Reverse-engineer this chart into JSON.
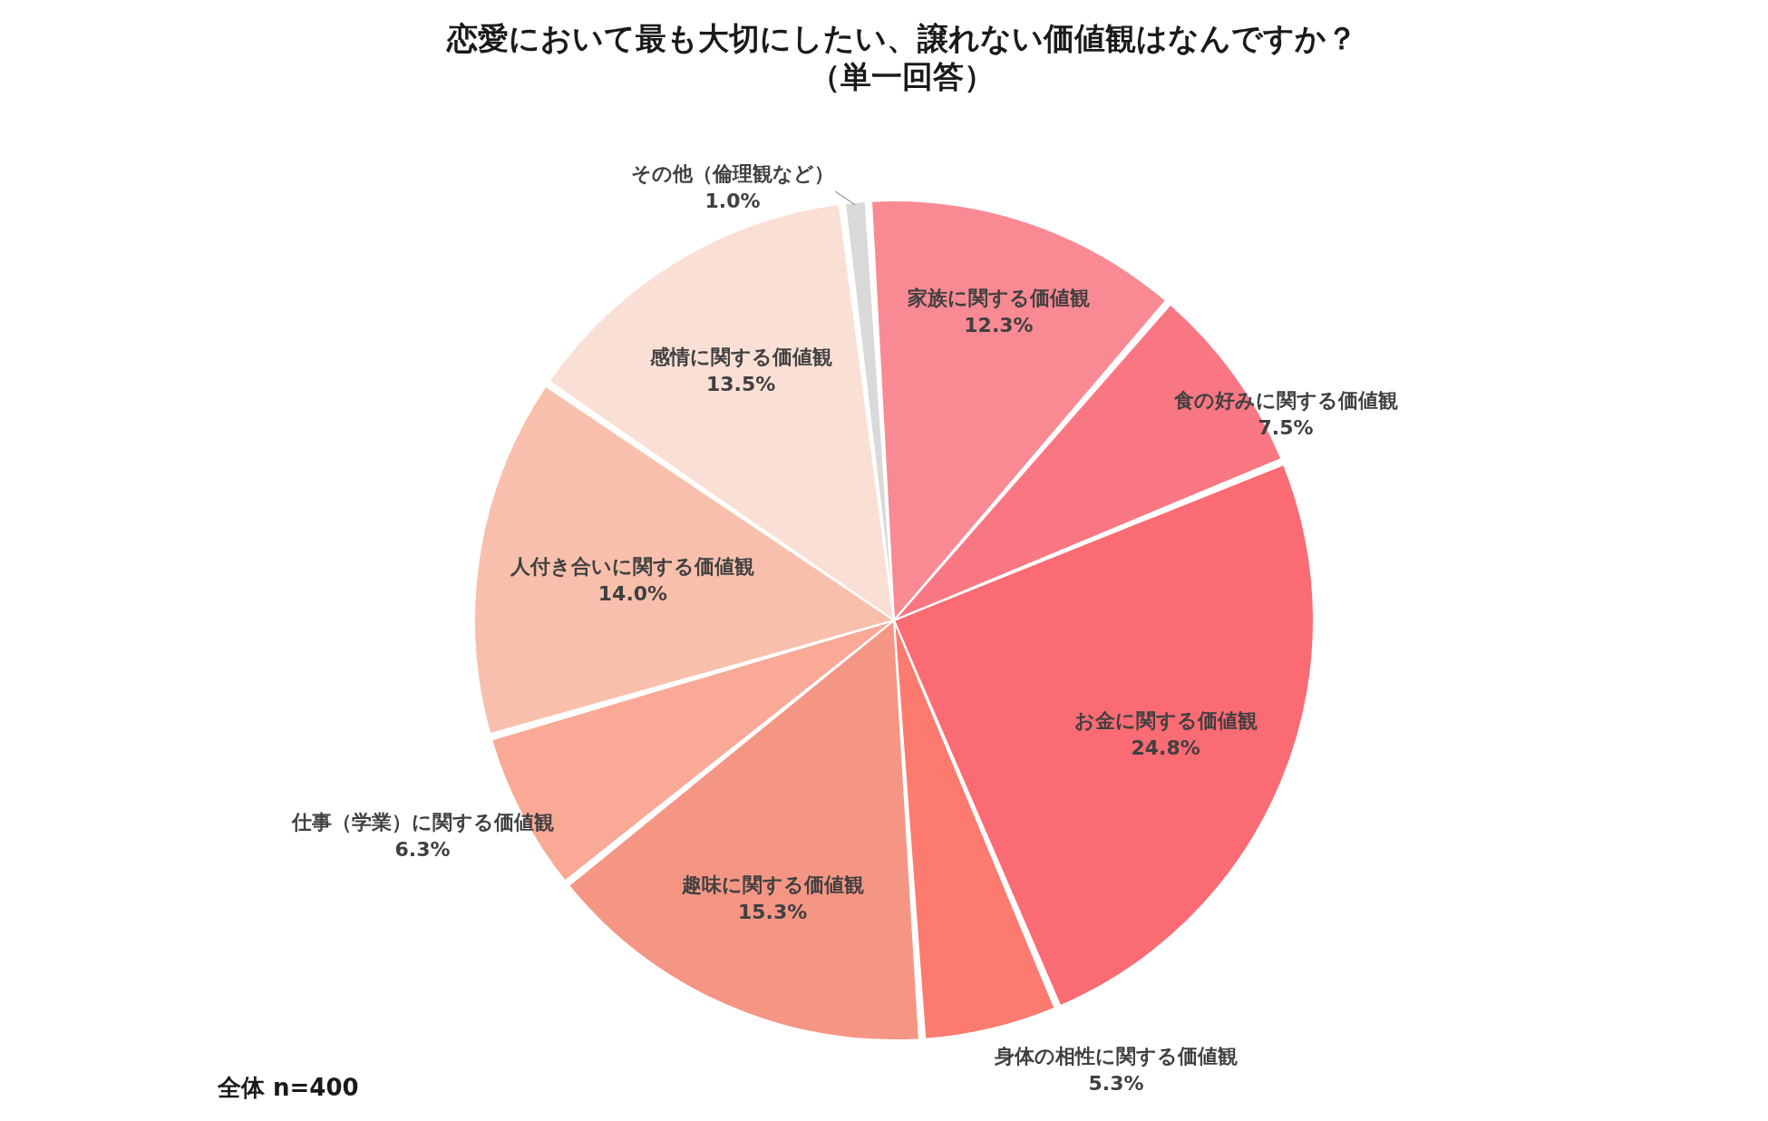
{
  "chart_data": {
    "type": "pie",
    "title": "恋愛において最も大切にしたい、譲れない価値観はなんですか？",
    "subtitle": "（単一回答）",
    "categories": [
      "家族に関する価値観",
      "食の好みに関する価値観",
      "お金に関する価値観",
      "身体の相性に関する価値観",
      "趣味に関する価値観",
      "仕事（学業）に関する価値観",
      "人付き合いに関する価値観",
      "感情に関する価値観",
      "その他（倫理観など）"
    ],
    "values": [
      12.3,
      7.5,
      24.8,
      5.3,
      15.3,
      6.3,
      14.0,
      13.5,
      1.0
    ],
    "colors": [
      "#f98a94",
      "#f97783",
      "#fb6b73",
      "#fc7a6e",
      "#f59685",
      "#f9a996",
      "#f8c0ac",
      "#fadfd5",
      "#d9d9d9"
    ],
    "value_labels": [
      "12.3%",
      "7.5%",
      "24.8%",
      "5.3%",
      "15.3%",
      "6.3%",
      "14.0%",
      "13.5%",
      "1.0%"
    ],
    "annotations": [
      "全体 n=400"
    ],
    "legend": false
  }
}
